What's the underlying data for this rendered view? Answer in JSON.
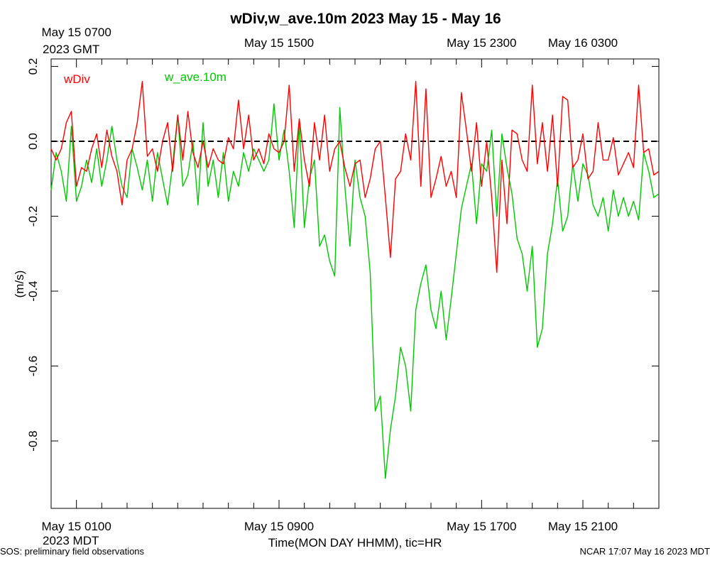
{
  "chart_data": {
    "type": "line",
    "title": "wDiv,w_ave.10m 2023 May 15 - May 16",
    "xlabel": "Time(MON DAY HHMM), tic=HR",
    "ylabel": "(m/s)",
    "ylim": [
      -0.98,
      0.22
    ],
    "yticks": [
      0.2,
      0.0,
      -0.2,
      -0.4,
      -0.6,
      -0.8
    ],
    "ytick_labels": [
      "0.2",
      "0.0",
      "-0.2",
      "-0.4",
      "-0.6",
      "-0.8"
    ],
    "x_range_hours": [
      0,
      24
    ],
    "x_minor_tick_hours": [
      1,
      2,
      3,
      4,
      5,
      6,
      7,
      8,
      9,
      10,
      11,
      12,
      13,
      14,
      15,
      16,
      17,
      18,
      19,
      20,
      21,
      22,
      23
    ],
    "bottom_axis_ticks": [
      {
        "hour": 1,
        "label": "May 15 0100"
      },
      {
        "hour": 9,
        "label": "May 15 0900"
      },
      {
        "hour": 17,
        "label": "May 15 1700"
      },
      {
        "hour": 21,
        "label": "May 15 2100"
      }
    ],
    "top_axis_ticks": [
      {
        "hour": 1,
        "label": "May 15 0700"
      },
      {
        "hour": 9,
        "label": "May 15 1500"
      },
      {
        "hour": 17,
        "label": "May 15 2300"
      },
      {
        "hour": 21,
        "label": "May 16 0300"
      }
    ],
    "bottom_timezone": "2023 MDT",
    "top_timezone": "2023 GMT",
    "reference_line": {
      "y": 0.0,
      "style": "dashed"
    },
    "legend_position": "top-left",
    "series": [
      {
        "name": "wDiv",
        "color": "#ff0000",
        "x": [
          0.0,
          0.2,
          0.4,
          0.6,
          0.8,
          1.0,
          1.2,
          1.4,
          1.6,
          1.8,
          2.0,
          2.2,
          2.4,
          2.6,
          2.8,
          3.0,
          3.2,
          3.4,
          3.6,
          3.8,
          4.0,
          4.2,
          4.4,
          4.6,
          4.8,
          5.0,
          5.2,
          5.4,
          5.6,
          5.8,
          6.0,
          6.2,
          6.4,
          6.6,
          6.8,
          7.0,
          7.2,
          7.4,
          7.6,
          7.8,
          8.0,
          8.2,
          8.4,
          8.6,
          8.8,
          9.0,
          9.2,
          9.4,
          9.6,
          9.8,
          10.0,
          10.2,
          10.4,
          10.6,
          10.8,
          11.0,
          11.2,
          11.4,
          11.6,
          11.8,
          12.0,
          12.2,
          12.4,
          12.6,
          12.8,
          13.0,
          13.2,
          13.4,
          13.6,
          13.8,
          14.0,
          14.2,
          14.4,
          14.6,
          14.8,
          15.0,
          15.2,
          15.4,
          15.6,
          15.8,
          16.0,
          16.2,
          16.4,
          16.6,
          16.8,
          17.0,
          17.2,
          17.4,
          17.6,
          17.8,
          18.0,
          18.2,
          18.4,
          18.6,
          18.8,
          19.0,
          19.2,
          19.4,
          19.6,
          19.8,
          20.0,
          20.2,
          20.4,
          20.6,
          20.8,
          21.0,
          21.2,
          21.4,
          21.6,
          21.8,
          22.0,
          22.2,
          22.4,
          22.6,
          22.8,
          23.0,
          23.2,
          23.4,
          23.6,
          23.8,
          24.0
        ],
        "y": [
          -0.02,
          -0.05,
          -0.02,
          0.05,
          0.08,
          -0.12,
          -0.07,
          -0.08,
          -0.02,
          0.02,
          -0.07,
          0.03,
          -0.04,
          -0.08,
          -0.17,
          -0.05,
          -0.02,
          0.05,
          0.16,
          -0.04,
          -0.02,
          -0.08,
          0.0,
          0.05,
          -0.08,
          0.07,
          -0.05,
          0.08,
          -0.03,
          -0.07,
          0.0,
          -0.07,
          -0.02,
          -0.05,
          -0.06,
          0.01,
          -0.02,
          0.11,
          -0.02,
          0.07,
          -0.05,
          -0.02,
          -0.06,
          0.02,
          -0.02,
          -0.03,
          0.0,
          0.15,
          -0.08,
          0.06,
          -0.05,
          -0.12,
          0.05,
          -0.05,
          0.07,
          -0.08,
          -0.02,
          0.0,
          -0.07,
          -0.12,
          -0.06,
          -0.05,
          -0.15,
          -0.1,
          -0.02,
          0.0,
          -0.15,
          -0.31,
          -0.1,
          -0.08,
          0.02,
          -0.05,
          0.16,
          -0.12,
          0.14,
          -0.15,
          -0.1,
          -0.04,
          -0.12,
          -0.08,
          -0.15,
          0.13,
          0.03,
          -0.08,
          0.05,
          -0.12,
          0.0,
          -0.15,
          -0.35,
          -0.05,
          -0.22,
          0.03,
          0.02,
          -0.05,
          -0.08,
          0.15,
          -0.06,
          0.05,
          -0.08,
          0.07,
          -0.12,
          0.12,
          0.11,
          -0.07,
          -0.05,
          0.02,
          -0.1,
          -0.08,
          0.05,
          -0.05,
          -0.05,
          0.01,
          -0.09,
          -0.06,
          -0.03,
          -0.07,
          0.15,
          -0.03,
          -0.02,
          -0.09,
          -0.08
        ]
      },
      {
        "name": "w_ave.10m",
        "color": "#00c800",
        "x": [
          0.0,
          0.2,
          0.4,
          0.6,
          0.8,
          1.0,
          1.2,
          1.4,
          1.6,
          1.8,
          2.0,
          2.2,
          2.4,
          2.6,
          2.8,
          3.0,
          3.2,
          3.4,
          3.6,
          3.8,
          4.0,
          4.2,
          4.4,
          4.6,
          4.8,
          5.0,
          5.2,
          5.4,
          5.6,
          5.8,
          6.0,
          6.2,
          6.4,
          6.6,
          6.8,
          7.0,
          7.2,
          7.4,
          7.6,
          7.8,
          8.0,
          8.2,
          8.4,
          8.6,
          8.8,
          9.0,
          9.2,
          9.4,
          9.6,
          9.8,
          10.0,
          10.2,
          10.4,
          10.6,
          10.8,
          11.0,
          11.2,
          11.4,
          11.6,
          11.8,
          12.0,
          12.2,
          12.4,
          12.6,
          12.8,
          13.0,
          13.2,
          13.4,
          13.6,
          13.8,
          14.0,
          14.2,
          14.4,
          14.6,
          14.8,
          15.0,
          15.2,
          15.4,
          15.6,
          15.8,
          16.0,
          16.2,
          16.4,
          16.6,
          16.8,
          17.0,
          17.2,
          17.4,
          17.6,
          17.8,
          18.0,
          18.2,
          18.4,
          18.6,
          18.8,
          19.0,
          19.2,
          19.4,
          19.6,
          19.8,
          20.0,
          20.2,
          20.4,
          20.6,
          20.8,
          21.0,
          21.2,
          21.4,
          21.6,
          21.8,
          22.0,
          22.2,
          22.4,
          22.6,
          22.8,
          23.0,
          23.2,
          23.4,
          23.6,
          23.8,
          24.0
        ],
        "y": [
          -0.13,
          -0.03,
          -0.08,
          -0.16,
          0.04,
          -0.16,
          -0.12,
          -0.05,
          -0.11,
          -0.02,
          -0.12,
          -0.05,
          0.04,
          -0.05,
          -0.12,
          -0.15,
          -0.02,
          -0.07,
          -0.13,
          -0.05,
          -0.16,
          -0.03,
          -0.1,
          -0.17,
          -0.06,
          0.07,
          -0.12,
          -0.09,
          0.0,
          -0.17,
          0.05,
          -0.12,
          -0.05,
          -0.15,
          -0.03,
          -0.16,
          -0.08,
          -0.12,
          -0.03,
          -0.08,
          -0.02,
          -0.05,
          -0.08,
          -0.05,
          0.1,
          -0.05,
          0.03,
          -0.08,
          -0.23,
          0.05,
          -0.23,
          -0.1,
          -0.05,
          -0.28,
          -0.25,
          -0.32,
          -0.36,
          0.09,
          -0.12,
          -0.28,
          -0.05,
          -0.15,
          -0.2,
          -0.35,
          -0.72,
          -0.68,
          -0.9,
          -0.77,
          -0.68,
          -0.55,
          -0.6,
          -0.72,
          -0.45,
          -0.38,
          -0.33,
          -0.45,
          -0.5,
          -0.4,
          -0.53,
          -0.42,
          -0.3,
          -0.18,
          -0.12,
          -0.06,
          -0.22,
          -0.06,
          -0.08,
          0.03,
          -0.2,
          0.02,
          -0.07,
          -0.14,
          -0.26,
          -0.3,
          -0.4,
          -0.28,
          -0.55,
          -0.5,
          -0.3,
          -0.22,
          -0.1,
          -0.24,
          -0.2,
          -0.06,
          -0.16,
          -0.06,
          -0.09,
          -0.17,
          -0.2,
          -0.15,
          -0.24,
          -0.13,
          -0.2,
          -0.15,
          -0.2,
          -0.16,
          -0.21,
          -0.03,
          -0.08,
          -0.15,
          -0.14
        ]
      }
    ]
  },
  "footer": {
    "left": "SOS: preliminary field observations",
    "right": "NCAR 17:07 May 16 2023 MDT"
  }
}
